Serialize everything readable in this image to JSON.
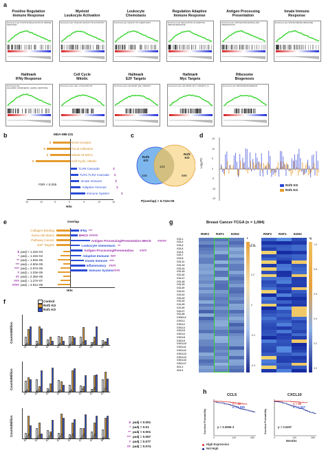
{
  "panel_a": {
    "letter": "a",
    "row1": [
      {
        "title": "Positive Regulation\nImmune Response",
        "enrich": "Enrichment plot: POSITIVE REGULATION OF IMMUNE RESPONSE"
      },
      {
        "title": "Myeloid\nLeukocyte Activation",
        "enrich": "Enrichment plot: MYELOID LEUKOCYTE ACTIVATION"
      },
      {
        "title": "Leukocyte\nChemotaxis",
        "enrich": "Enrichment plot: LEUKOCYTE CHEMOTAXIS"
      },
      {
        "title": "Regulation Adaptive\nImmune Response",
        "enrich": "Enrichment plot: REGULATION OF ADAPTIVE IMMUNE RESPONSE"
      },
      {
        "title": "Antigen Processing\nPresentation",
        "enrich": "Enrichment plot: ANTIGEN PROCESSING AND PRESENTATION"
      },
      {
        "title": "Innate Immune\nResponse",
        "enrich": "Enrichment plot: INNATE IMMUNE RESPONSE"
      }
    ],
    "row2": [
      {
        "title": "Hallmark\nIFNγ Response",
        "enrich": "Enrichment plot: HALLMARK_INTERFERON_GAMMA_RESPONSE"
      },
      {
        "title": "Cell Cycle\nMitotic",
        "enrich": "Enrichment plot: CELL CYCLE MITOTIC"
      },
      {
        "title": "Hallmark\nE2F Targets",
        "enrich": "Enrichment plot: HALLMARK_E2F_TARGETS"
      },
      {
        "title": "Hallmark\nMyc Targets",
        "enrich": "Enrichment plot: HALLMARK_MYC_TARGETS_V1"
      },
      {
        "title": "Ribosome\nBiogenesis",
        "enrich": "Enrichment plot: RIBOSOME BIOGENESIS"
      }
    ]
  },
  "panel_b": {
    "letter": "b",
    "title": "MDA-MB-231",
    "xlabel": "Hits",
    "fdr": "FDR < 0.005",
    "up": [
      {
        "label": "ECM-receptor",
        "value": 6,
        "mark": "$"
      },
      {
        "label": "Focal Adhesion",
        "value": 8,
        "mark": "$"
      },
      {
        "label": "Mitotic M-M/G1",
        "value": 7,
        "mark": "$"
      },
      {
        "label": "Cell Cycle, Mitotic",
        "value": 12,
        "mark": "$"
      }
    ],
    "down": [
      {
        "label": "TLR9 Cascade",
        "value": 6,
        "mark": "$"
      },
      {
        "label": "TLR1:TLR2 Cascade",
        "value": 7,
        "mark": "$"
      },
      {
        "label": "Innate Immune",
        "value": 8,
        "mark": "$"
      },
      {
        "label": "Adaptive Immune",
        "value": 9,
        "mark": "$"
      },
      {
        "label": "Immune System",
        "value": 13,
        "mark": "$"
      }
    ],
    "ticks": [
      "15",
      "10",
      "5",
      "0",
      "5",
      "10",
      "15"
    ]
  },
  "panel_c": {
    "letter": "c",
    "left_label": "Rnf2 KO",
    "right_label": "Rsf1 KO",
    "left_n": "348",
    "overlap_n": "134",
    "right_n": "588",
    "pval": "P(overlap) < 5.722e-05"
  },
  "panel_d": {
    "letter": "d",
    "ylabel": "Log₂FC",
    "yticks": [
      "15",
      "10",
      "5",
      "0",
      "-5",
      "-10",
      "-15"
    ],
    "legend": [
      "Rnf2 KO",
      "Rsf1 KO"
    ]
  },
  "panel_e": {
    "letter": "e",
    "title": "Overlap",
    "xlabel": "Hits",
    "left": [
      {
        "label": "Collagen Binding",
        "padj": "",
        "value": 6
      },
      {
        "label": "Extra-cell Matrix",
        "padj": "",
        "value": 7
      },
      {
        "label": "Pathway Cancer",
        "padj": "",
        "value": 8
      },
      {
        "label": "E2F Targets",
        "padj": "",
        "value": 9
      }
    ],
    "right": [
      {
        "label": "IFNγ",
        "mark": "***",
        "value": 7
      },
      {
        "label": "MHCII",
        "mark": "#####",
        "value": 6
      },
      {
        "label": "Antigen Processing/Presentation MHCII",
        "mark": "#####",
        "value": 16
      },
      {
        "label": "Leukocyte chemotaxis",
        "mark": "**",
        "value": 8
      },
      {
        "label": "Antigen Processing/Presentation",
        "mark": "####",
        "value": 10
      },
      {
        "label": "Adaptive Immune",
        "mark": "###",
        "value": 9
      },
      {
        "label": "Innate Immune",
        "mark": "****",
        "value": 11
      },
      {
        "label": "Inflammatory",
        "mark": "####",
        "value": 12
      },
      {
        "label": "Immune System",
        "mark": "####",
        "value": 14
      }
    ],
    "padj_rows": [
      {
        "mark": "$",
        "text": "padj < 1.32e-04"
      },
      {
        "mark": "*",
        "text": "padj = 1.32e-04"
      },
      {
        "mark": "**",
        "text": "padj = 1.84e-05"
      },
      {
        "mark": "***",
        "text": "padj = 4.50e-06"
      },
      {
        "mark": "****",
        "text": "padj = 2.97e-06"
      },
      {
        "mark": "#",
        "text": "padj = 1.03e-06"
      },
      {
        "mark": "##",
        "text": "padj = 2.36e-06"
      },
      {
        "mark": "###",
        "text": "padj = 1.27e-07"
      },
      {
        "mark": "####",
        "text": "padj = 4.81e-09"
      }
    ]
  },
  "panel_f": {
    "letter": "f",
    "legend": [
      "Control",
      "Rnf2 KO",
      "Rsf1 KO"
    ],
    "ylabel": "Counts/Million",
    "groups1": [
      "Ccl2",
      "Ccl5",
      "Ccl7",
      "Ccl8",
      "Ccl11",
      "Ccl12",
      "Ccl20",
      "Ccl25"
    ],
    "groups2": [
      "Ccl4",
      "Ccl3",
      "Ccl5",
      "Ccl6",
      "Ccl8",
      "Cxcl9",
      "Cxcl10",
      "Cxcl11"
    ],
    "groups3": [
      "Cxcl10",
      "Cxcl11",
      "Cxcl12",
      "Cxcl13",
      "Cxcl14",
      "Cxcl15",
      "Cxcl16",
      "Xcl1"
    ],
    "padj_legend": [
      {
        "mark": "$",
        "text": "padj < 0.001"
      },
      {
        "mark": "*",
        "text": "padj = 0.01"
      },
      {
        "mark": "**",
        "text": "padj < 0.001"
      },
      {
        "mark": "***",
        "text": "padj = 0.057"
      },
      {
        "mark": "#",
        "text": "padj = 0.077"
      },
      {
        "mark": "##",
        "text": "padj = 0.074"
      }
    ]
  },
  "panel_g": {
    "letter": "g",
    "title": "Breast Cancer-TCGA (n = 1,084)",
    "cols": [
      "RNF2",
      "RSF1",
      "EZH2"
    ],
    "left_scale_label": "r",
    "right_scale_label": "q",
    "left_scale_ticks": [
      "0.4",
      "0.2",
      "0",
      "-0.2",
      "-0.4"
    ],
    "right_scale_ticks": [
      "1.0",
      "0.8",
      "0.6",
      "0.4",
      "0.2",
      "0.0"
    ],
    "rows_left": [
      "CCL1",
      "CCL2",
      "CCL3",
      "CCL4",
      "CCL5",
      "CCL7",
      "CCL8",
      "CCL11",
      "CCL13",
      "CCL14",
      "CCL15",
      "CCL16",
      "CCL17",
      "CCL18",
      "CCL19",
      "CCL20",
      "CCL21",
      "CCL22",
      "CCL23",
      "CCL24",
      "CCL25",
      "CCL26",
      "CCL27",
      "CCL28",
      "CX3CL1",
      "CXCL1",
      "CXCL2",
      "CXCL3",
      "CXCL5",
      "CXCL6",
      "CXCL8",
      "CXCL9",
      "CXCL10",
      "CXCL11",
      "CXCL12",
      "CXCL13",
      "CXCL14",
      "CXCL16",
      "CXCL17",
      "XCL1",
      "XCL2"
    ],
    "rows_right_label": "CCL15-"
  },
  "panel_h": {
    "letter": "h",
    "plots": [
      {
        "title": "CCL5",
        "ylabel": "Survival Probability",
        "n_high": "n = 45",
        "n_not": "n = 1,035",
        "pval": "p = 5.396E-3",
        "xticks": [
          "0",
          "140",
          "280"
        ],
        "xlabel": ""
      },
      {
        "title": "CXCL10",
        "ylabel": "Survival Probability",
        "n_high": "n = 55",
        "n_not": "n = 1,027",
        "pval": "p = 0.0497",
        "xticks": [
          "0",
          "140",
          "280"
        ],
        "xlabel": "Months"
      }
    ],
    "legend": [
      "High Expression",
      "Not High"
    ]
  },
  "colors": {
    "orange": "#e59a2c",
    "blue": "#2a4ad7",
    "purple": "#9b2ca8",
    "green": "#35d42b",
    "red": "#d83131",
    "navy": "#1b2a8f"
  }
}
